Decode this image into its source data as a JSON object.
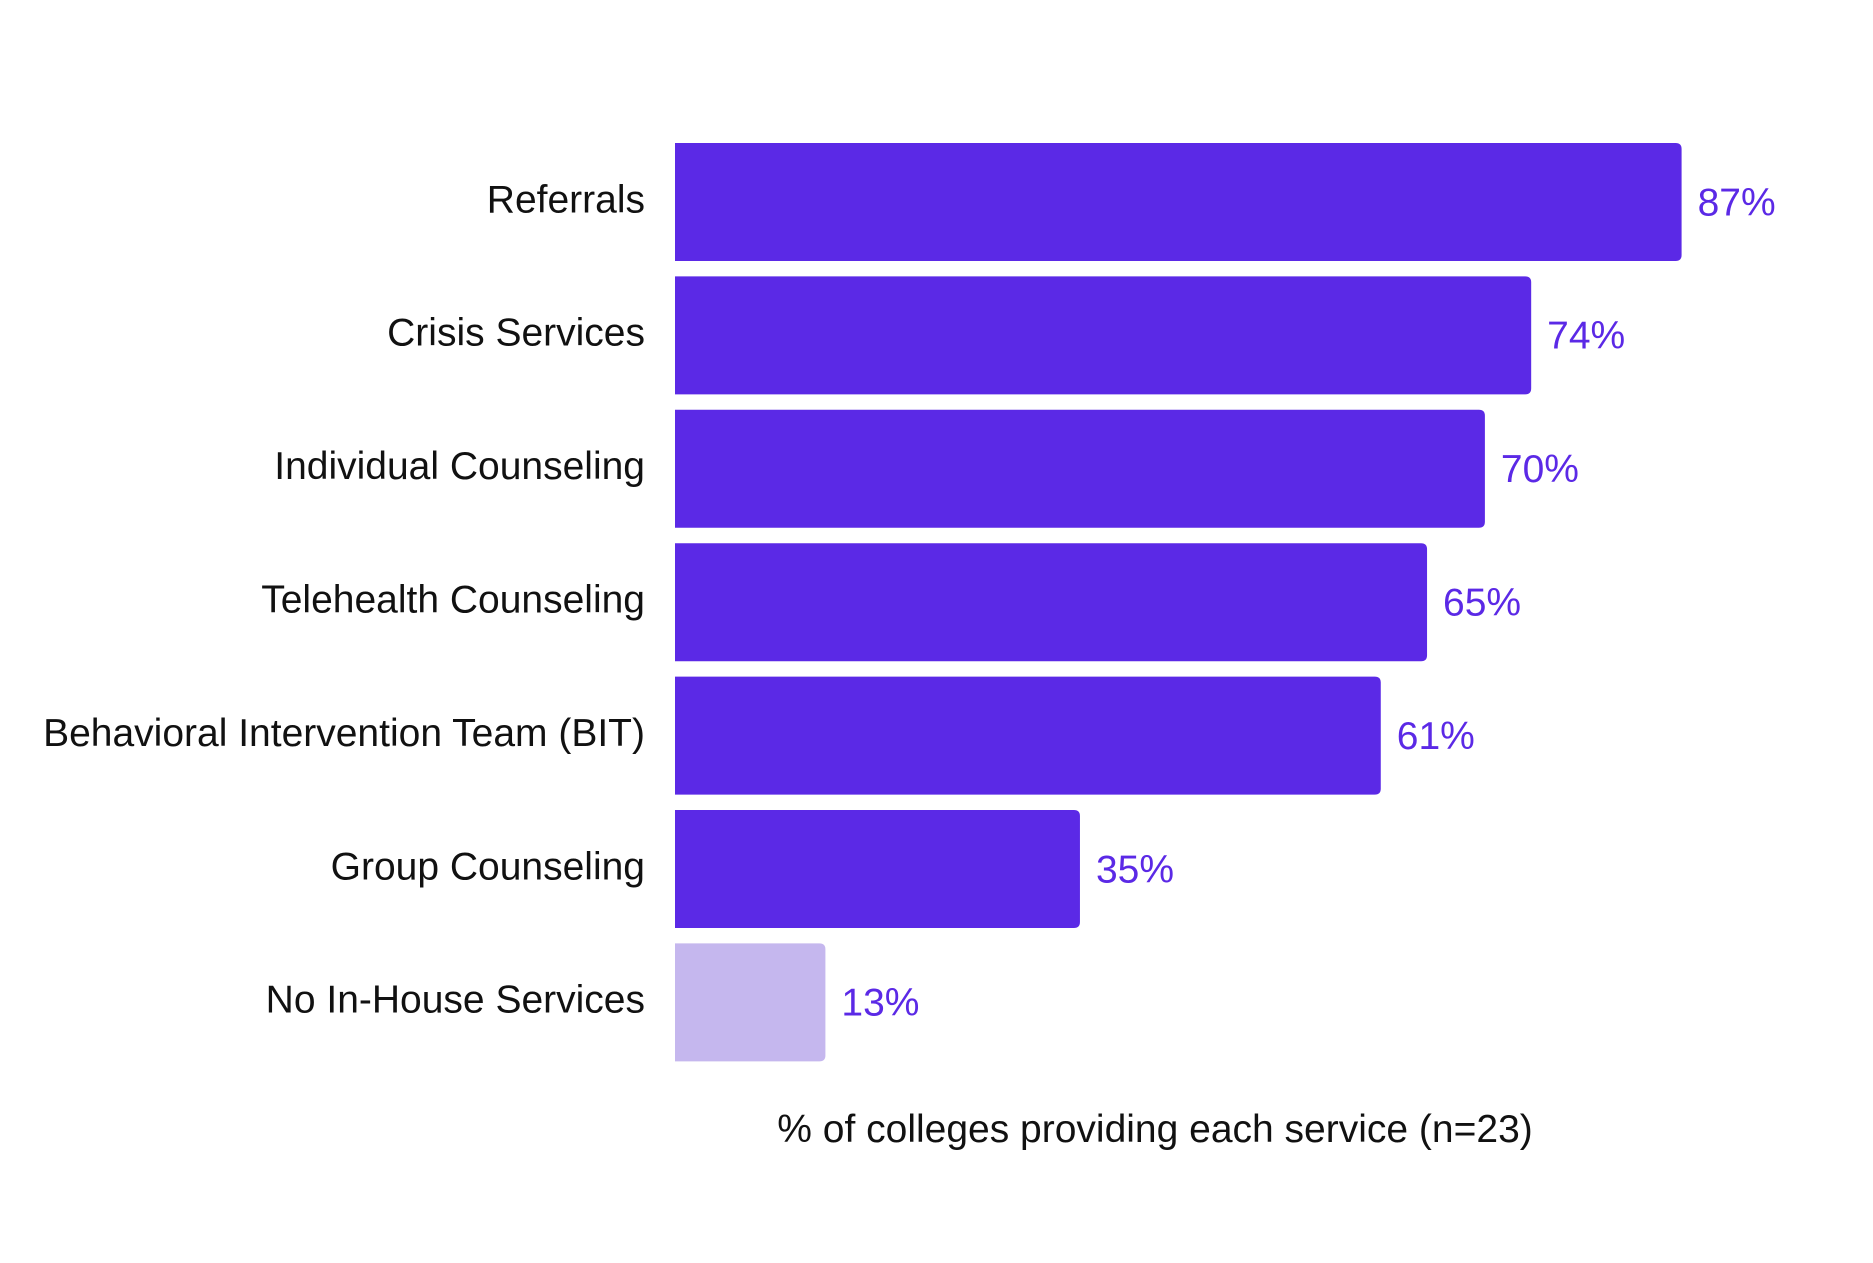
{
  "chart_data": {
    "type": "bar",
    "orientation": "horizontal",
    "categories": [
      "Referrals",
      "Crisis Services",
      "Individual Counseling",
      "Telehealth Counseling",
      "Behavioral Intervention Team (BIT)",
      "Group Counseling",
      "No In-House Services"
    ],
    "values": [
      87,
      74,
      70,
      65,
      61,
      35,
      13
    ],
    "value_labels": [
      "87%",
      "74%",
      "70%",
      "65%",
      "61%",
      "35%",
      "13%"
    ],
    "xlabel": "% of colleges providing each service (n=23)",
    "ylabel": "",
    "xlim": [
      0,
      100
    ],
    "grid": false,
    "legend": "none",
    "colors": {
      "bar": "#5B29E6",
      "bar_highlight": "#C5B7EE",
      "value_label": "#5B29E6"
    },
    "highlight_index": 6
  }
}
